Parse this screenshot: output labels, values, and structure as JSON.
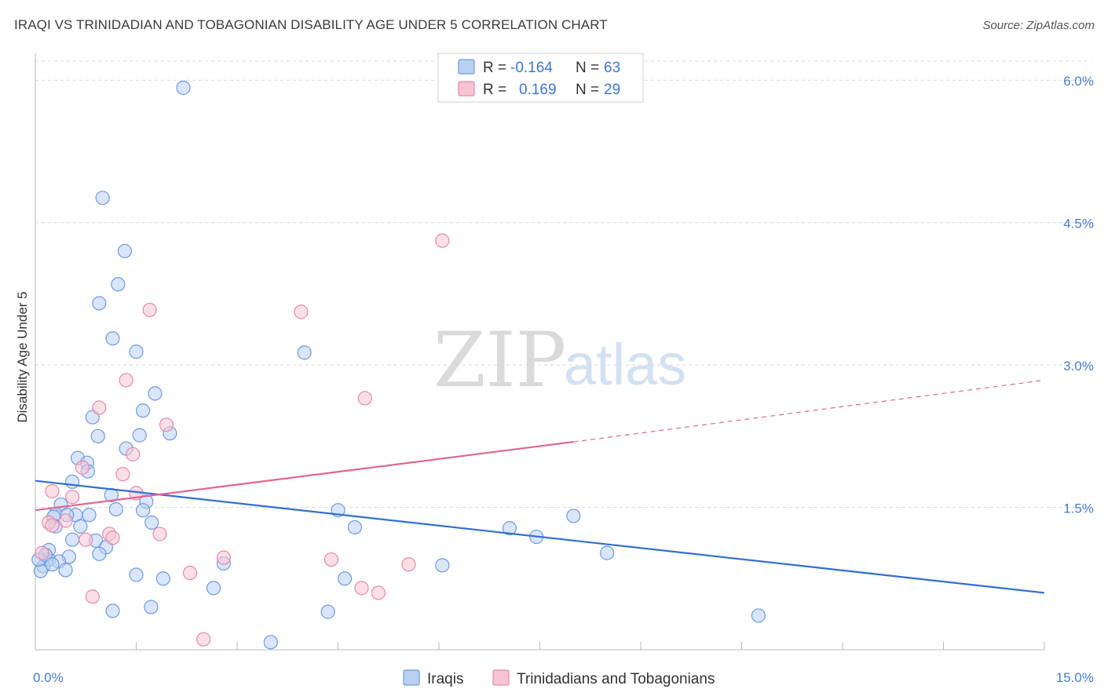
{
  "title": "IRAQI VS TRINIDADIAN AND TOBAGONIAN DISABILITY AGE UNDER 5 CORRELATION CHART",
  "source": "Source: ZipAtlas.com",
  "watermark": {
    "zip": "ZIP",
    "atlas": "atlas"
  },
  "colors": {
    "blue_fill": "#b9d0f2",
    "blue_stroke": "#6f9be0",
    "blue_line": "#2f6fd1",
    "pink_fill": "#f7c4d4",
    "pink_stroke": "#e68aa7",
    "pink_line": "#e0668f",
    "grid": "#d8d8d8",
    "tick_text": "#4a7bd0"
  },
  "legend": {
    "rows": [
      {
        "r_label": "R =",
        "r_value": "-0.164",
        "n_label": "N =",
        "n_value": "63"
      },
      {
        "r_label": "R =",
        "r_value": "0.169",
        "n_label": "N =",
        "n_value": "29"
      }
    ]
  },
  "bottom_legend": [
    "Iraqis",
    "Trinidadians and Tobagonians"
  ],
  "chart_data": {
    "type": "scatter",
    "title": "IRAQI VS TRINIDADIAN AND TOBAGONIAN DISABILITY AGE UNDER 5 CORRELATION CHART",
    "xlabel": "",
    "ylabel": "Disability Age Under 5",
    "xlim": [
      0,
      15
    ],
    "ylim": [
      0,
      6.2
    ],
    "x_tick_labels": [
      "0.0%",
      "15.0%"
    ],
    "y_ticks": [
      1.5,
      3.0,
      4.5,
      6.0
    ],
    "y_tick_labels": [
      "1.5%",
      "3.0%",
      "4.5%",
      "6.0%"
    ],
    "grid": "horizontal dashed",
    "legend_placement": "top-center",
    "series": [
      {
        "name": "Iraqis",
        "r": -0.164,
        "n": 63,
        "trend": {
          "x": [
            0,
            15
          ],
          "y": [
            1.78,
            0.6
          ]
        },
        "points": [
          [
            2.2,
            5.92
          ],
          [
            1.0,
            4.76
          ],
          [
            1.33,
            4.2
          ],
          [
            1.23,
            3.85
          ],
          [
            0.95,
            3.65
          ],
          [
            1.15,
            3.28
          ],
          [
            1.5,
            3.14
          ],
          [
            4.0,
            3.13
          ],
          [
            1.78,
            2.7
          ],
          [
            1.6,
            2.52
          ],
          [
            0.85,
            2.45
          ],
          [
            0.93,
            2.25
          ],
          [
            1.55,
            2.26
          ],
          [
            2.0,
            2.28
          ],
          [
            1.35,
            2.12
          ],
          [
            0.63,
            2.02
          ],
          [
            0.77,
            1.97
          ],
          [
            0.78,
            1.88
          ],
          [
            0.55,
            1.77
          ],
          [
            1.13,
            1.63
          ],
          [
            0.38,
            1.53
          ],
          [
            1.65,
            1.56
          ],
          [
            1.2,
            1.48
          ],
          [
            1.6,
            1.47
          ],
          [
            4.5,
            1.47
          ],
          [
            0.3,
            1.43
          ],
          [
            0.27,
            1.4
          ],
          [
            0.6,
            1.42
          ],
          [
            0.47,
            1.42
          ],
          [
            0.8,
            1.42
          ],
          [
            1.73,
            1.34
          ],
          [
            0.3,
            1.3
          ],
          [
            0.67,
            1.3
          ],
          [
            4.75,
            1.29
          ],
          [
            7.05,
            1.28
          ],
          [
            8.0,
            1.41
          ],
          [
            7.45,
            1.19
          ],
          [
            0.55,
            1.16
          ],
          [
            0.9,
            1.15
          ],
          [
            1.05,
            1.08
          ],
          [
            0.2,
            1.05
          ],
          [
            0.95,
            1.01
          ],
          [
            0.5,
            0.98
          ],
          [
            8.5,
            1.02
          ],
          [
            0.2,
            0.95
          ],
          [
            0.35,
            0.93
          ],
          [
            0.12,
            0.88
          ],
          [
            0.08,
            0.83
          ],
          [
            0.45,
            0.84
          ],
          [
            2.8,
            0.91
          ],
          [
            6.05,
            0.89
          ],
          [
            1.5,
            0.79
          ],
          [
            1.9,
            0.75
          ],
          [
            4.6,
            0.75
          ],
          [
            2.65,
            0.65
          ],
          [
            1.72,
            0.45
          ],
          [
            1.15,
            0.41
          ],
          [
            4.35,
            0.4
          ],
          [
            10.75,
            0.36
          ],
          [
            3.5,
            0.08
          ],
          [
            0.05,
            0.95
          ],
          [
            0.15,
            1.0
          ],
          [
            0.25,
            0.9
          ]
        ]
      },
      {
        "name": "Trinidadians and Tobagonians",
        "r": 0.169,
        "n": 29,
        "trend": {
          "x": [
            0,
            8.0
          ],
          "y": [
            1.47,
            2.19
          ]
        },
        "trend_dashed": {
          "x": [
            8.0,
            15
          ],
          "y": [
            2.19,
            2.84
          ]
        },
        "points": [
          [
            6.05,
            4.31
          ],
          [
            1.7,
            3.58
          ],
          [
            3.95,
            3.56
          ],
          [
            1.35,
            2.84
          ],
          [
            4.9,
            2.65
          ],
          [
            0.95,
            2.55
          ],
          [
            1.95,
            2.37
          ],
          [
            1.45,
            2.06
          ],
          [
            0.7,
            1.92
          ],
          [
            1.3,
            1.85
          ],
          [
            0.25,
            1.67
          ],
          [
            1.5,
            1.65
          ],
          [
            0.55,
            1.61
          ],
          [
            0.45,
            1.36
          ],
          [
            0.2,
            1.34
          ],
          [
            0.25,
            1.31
          ],
          [
            1.1,
            1.22
          ],
          [
            1.85,
            1.22
          ],
          [
            1.15,
            1.18
          ],
          [
            0.75,
            1.16
          ],
          [
            0.1,
            1.02
          ],
          [
            2.8,
            0.97
          ],
          [
            4.4,
            0.95
          ],
          [
            5.55,
            0.9
          ],
          [
            2.3,
            0.81
          ],
          [
            4.85,
            0.65
          ],
          [
            5.1,
            0.6
          ],
          [
            0.85,
            0.56
          ],
          [
            2.5,
            0.11
          ]
        ]
      }
    ]
  }
}
